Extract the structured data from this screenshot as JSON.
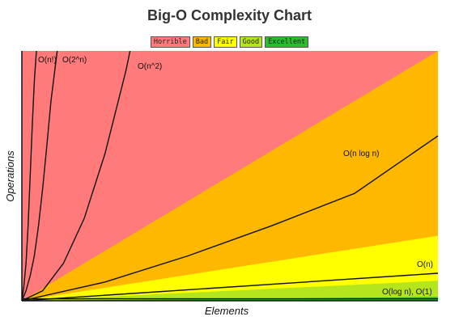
{
  "chart_data": {
    "type": "area",
    "title": "Big-O Complexity Chart",
    "xlabel": "Elements",
    "ylabel": "Operations",
    "xlim": [
      0,
      100
    ],
    "ylim": [
      0,
      100
    ],
    "legend_position": "top",
    "legend": [
      {
        "label": "Horrible",
        "color": "#ff7b7b"
      },
      {
        "label": "Bad",
        "color": "#ffb800"
      },
      {
        "label": "Fair",
        "color": "#ffff00"
      },
      {
        "label": "Good",
        "color": "#b5e51d"
      },
      {
        "label": "Excellent",
        "color": "#2bbd2b"
      }
    ],
    "regions": [
      {
        "name": "Horrible",
        "color": "#ff7b7b",
        "upper_y": [
          100,
          100
        ]
      },
      {
        "name": "Bad",
        "color": "#ffb800",
        "upper_y": [
          0,
          100
        ]
      },
      {
        "name": "Fair",
        "color": "#ffff00",
        "upper_y": [
          0,
          26
        ]
      },
      {
        "name": "Good",
        "color": "#b5e51d",
        "upper_y": [
          0,
          8
        ]
      },
      {
        "name": "Excellent",
        "color": "#2bbd2b",
        "upper_y": [
          0,
          1.5
        ]
      }
    ],
    "series": [
      {
        "name": "O(n!)",
        "x": [
          0,
          0.5,
          1,
          1.5,
          2,
          2.5,
          3,
          3.5
        ],
        "y": [
          0,
          6,
          15,
          30,
          50,
          70,
          88,
          100
        ]
      },
      {
        "name": "O(2^n)",
        "x": [
          0,
          1,
          2,
          3,
          4,
          5,
          6,
          7,
          8.5
        ],
        "y": [
          0,
          4,
          10,
          18,
          30,
          45,
          62,
          80,
          100
        ]
      },
      {
        "name": "O(n^2)",
        "x": [
          0,
          5,
          10,
          15,
          20,
          25,
          26
        ],
        "y": [
          0,
          4,
          15,
          33,
          59,
          92,
          100
        ]
      },
      {
        "name": "O(n log n)",
        "x": [
          0,
          20,
          40,
          60,
          80,
          100
        ],
        "y": [
          0,
          7.5,
          18,
          30,
          43,
          66
        ]
      },
      {
        "name": "O(n)",
        "x": [
          0,
          100
        ],
        "y": [
          0,
          11
        ]
      },
      {
        "name": "O(log n), O(1)",
        "x": [
          0,
          100
        ],
        "y": [
          0.8,
          0.8
        ]
      }
    ],
    "series_labels": [
      "O(n!)",
      "O(2^n)",
      "O(n^2)",
      "O(n log n)",
      "O(n)",
      "O(log n), O(1)"
    ]
  }
}
